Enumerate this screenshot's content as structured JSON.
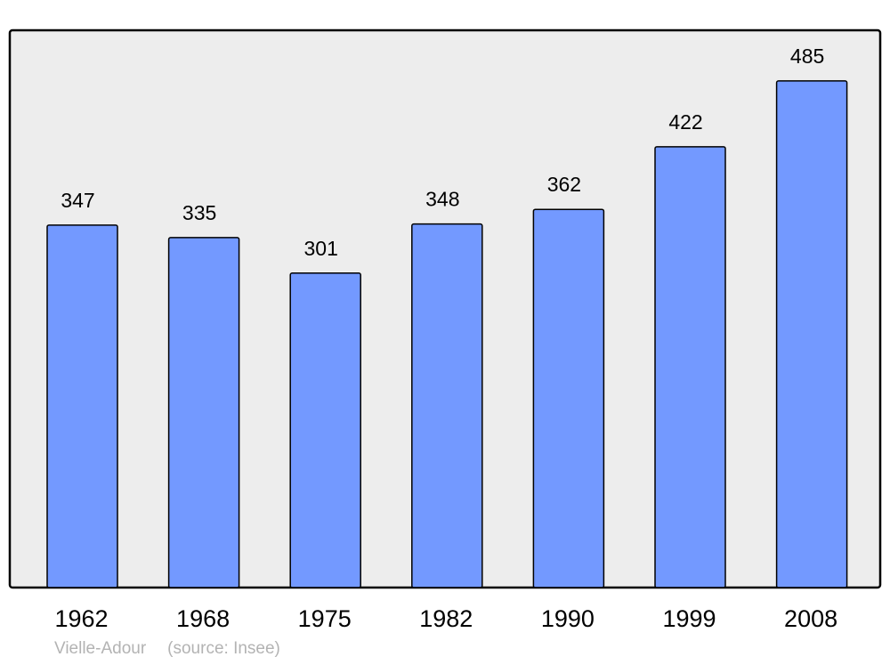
{
  "chart_data": {
    "type": "bar",
    "categories": [
      "1962",
      "1968",
      "1975",
      "1982",
      "1990",
      "1999",
      "2008"
    ],
    "values": [
      347,
      335,
      301,
      348,
      362,
      422,
      485
    ],
    "title": "",
    "xlabel": "",
    "ylabel": "",
    "ylim": [
      0,
      533.5
    ],
    "grid": false,
    "data_labels": true,
    "colors": {
      "bar": "#7399ff",
      "bar_stroke": "#000000",
      "plot_background": "#ededed"
    }
  },
  "footer": {
    "place": "Vielle-Adour",
    "source": "(source: Insee)"
  }
}
